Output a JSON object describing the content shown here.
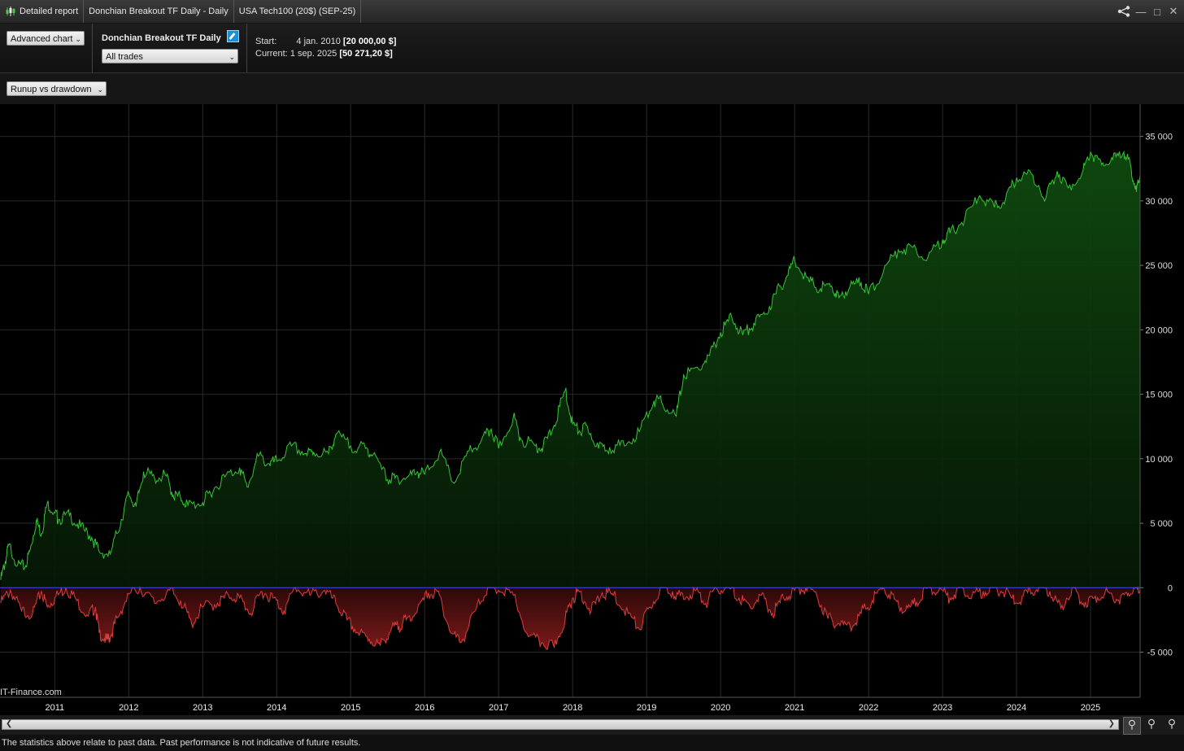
{
  "titlebar": {
    "report_label": "Detailed report",
    "strategy_label": "Donchian Breakout TF Daily - Daily",
    "instrument_label": "USA Tech100 (20$) (SEP-25)"
  },
  "toolbar": {
    "chart_mode": "Advanced chart",
    "strategy_name": "Donchian Breakout TF Daily",
    "trades_filter": "All trades",
    "start_label": "Start:",
    "start_date": "4 jan. 2010",
    "start_value": "[20 000,00 $]",
    "current_label": "Current:",
    "current_date": "1 sep. 2025",
    "current_value": "[50 271,20 $]"
  },
  "view_selector": "Runup vs drawdown",
  "watermark": "IT-Finance.com",
  "footer_text": "The statistics above relate to past data. Past performance is not indicative of future results.",
  "colors": {
    "runup": "#36c436",
    "drawdown": "#e03c3c",
    "zero_line": "#3b4bff",
    "grid": "#2a2a2a"
  },
  "chart_data": {
    "type": "area",
    "x_tick_labels": [
      "2011",
      "2012",
      "2013",
      "2014",
      "2015",
      "2016",
      "2017",
      "2018",
      "2019",
      "2020",
      "2021",
      "2022",
      "2023",
      "2024",
      "2025"
    ],
    "y_tick_labels": [
      "35 000",
      "30 000",
      "25 000",
      "20 000",
      "15 000",
      "10 000",
      "5 000",
      "0",
      "-5 000"
    ],
    "ylim": [
      -8500,
      37500
    ],
    "xlim": [
      2010.26,
      2025.67
    ],
    "grid": true,
    "series": [
      {
        "x": [
          2010.27,
          2010.33,
          2010.38,
          2010.5,
          2010.6,
          2010.67,
          2010.75,
          2010.82,
          2010.9,
          2011.0,
          2011.05,
          2011.2,
          2011.35,
          2011.5,
          2011.6,
          2011.75,
          2011.9,
          2012.0,
          2012.1,
          2012.2,
          2012.35,
          2012.5,
          2012.6,
          2012.7,
          2012.8,
          2013.0,
          2013.1,
          2013.3,
          2013.5,
          2013.6,
          2013.75,
          2013.9,
          2014.0,
          2014.2,
          2014.4,
          2014.5,
          2014.7,
          2014.8,
          2015.0,
          2015.2,
          2015.3,
          2015.5,
          2015.6,
          2015.75,
          2015.9,
          2016.0,
          2016.2,
          2016.4,
          2016.6,
          2016.75,
          2016.9,
          2017.0,
          2017.2,
          2017.3,
          2017.5,
          2017.6,
          2017.75,
          2017.9,
          2018.0,
          2018.1,
          2018.2,
          2018.35,
          2018.5,
          2018.7,
          2018.9,
          2019.1,
          2019.2,
          2019.4,
          2019.5,
          2019.7,
          2019.85,
          2020.0,
          2020.15,
          2020.3,
          2020.45,
          2020.6,
          2020.75,
          2020.9,
          2021.0,
          2021.2,
          2021.35,
          2021.5,
          2021.6,
          2021.75,
          2021.9,
          2022.0,
          2022.2,
          2022.4,
          2022.6,
          2022.8,
          2023.0,
          2023.1,
          2023.3,
          2023.5,
          2023.7,
          2023.85,
          2024.0,
          2024.2,
          2024.4,
          2024.55,
          2024.7,
          2024.9,
          2025.0,
          2025.15,
          2025.3,
          2025.45,
          2025.55,
          2025.62,
          2025.67
        ],
        "values": [
          600,
          2000,
          3300,
          1800,
          1600,
          3000,
          5200,
          4200,
          6600,
          5800,
          5300,
          5600,
          4700,
          3900,
          2800,
          2600,
          5300,
          7300,
          6300,
          9000,
          8500,
          8700,
          7200,
          7000,
          6400,
          6600,
          7400,
          8600,
          9300,
          7800,
          10200,
          9600,
          9800,
          11000,
          10400,
          10500,
          10400,
          11900,
          11000,
          10800,
          10300,
          8400,
          8500,
          8500,
          9000,
          8800,
          10500,
          8100,
          10600,
          11200,
          12300,
          10800,
          13300,
          11500,
          11000,
          10900,
          12600,
          15300,
          12700,
          12100,
          12500,
          10800,
          10900,
          11000,
          12100,
          14500,
          14400,
          13300,
          16500,
          17000,
          18000,
          19800,
          21000,
          19600,
          20500,
          21200,
          22800,
          24200,
          25500,
          23700,
          23200,
          23400,
          22500,
          23400,
          23700,
          22800,
          24500,
          26200,
          26400,
          25600,
          27000,
          27500,
          28600,
          30400,
          29500,
          30100,
          31800,
          32100,
          30300,
          32300,
          31000,
          32400,
          33800,
          32800,
          33200,
          33800,
          32500,
          30700,
          32000
        ],
        "color": "#36c436"
      },
      {
        "x": [
          2010.27,
          2010.4,
          2010.55,
          2010.7,
          2010.82,
          2010.9,
          2011.0,
          2011.15,
          2011.3,
          2011.45,
          2011.55,
          2011.6,
          2011.7,
          2011.75,
          2011.85,
          2012.0,
          2012.15,
          2012.35,
          2012.55,
          2012.7,
          2012.85,
          2013.0,
          2013.2,
          2013.35,
          2013.5,
          2013.65,
          2013.8,
          2013.95,
          2014.1,
          2014.25,
          2014.45,
          2014.65,
          2014.8,
          2014.95,
          2015.1,
          2015.25,
          2015.4,
          2015.55,
          2015.65,
          2015.75,
          2015.9,
          2016.05,
          2016.2,
          2016.35,
          2016.5,
          2016.7,
          2016.85,
          2017.0,
          2017.2,
          2017.4,
          2017.6,
          2017.75,
          2017.9,
          2018.0,
          2018.1,
          2018.25,
          2018.4,
          2018.55,
          2018.75,
          2018.9,
          2019.05,
          2019.2,
          2019.35,
          2019.5,
          2019.65,
          2019.8,
          2019.95,
          2020.1,
          2020.25,
          2020.4,
          2020.55,
          2020.7,
          2020.85,
          2021.0,
          2021.15,
          2021.3,
          2021.45,
          2021.6,
          2021.75,
          2021.9,
          2022.05,
          2022.2,
          2022.35,
          2022.5,
          2022.65,
          2022.8,
          2022.95,
          2023.1,
          2023.25,
          2023.4,
          2023.55,
          2023.7,
          2023.85,
          2024.0,
          2024.15,
          2024.3,
          2024.45,
          2024.6,
          2024.75,
          2024.9,
          2025.05,
          2025.2,
          2025.35,
          2025.5,
          2025.6,
          2025.67
        ],
        "values": [
          -1200,
          -200,
          -1800,
          -2000,
          -300,
          -1500,
          -800,
          0,
          -1000,
          -2200,
          -1500,
          -3500,
          -4100,
          -3800,
          -2300,
          -500,
          0,
          -1200,
          -200,
          -1000,
          -2800,
          -1500,
          -1200,
          -600,
          -800,
          -2000,
          -300,
          -800,
          -1800,
          0,
          -600,
          -200,
          -1200,
          -2500,
          -3500,
          -4000,
          -4500,
          -3200,
          -3000,
          -2500,
          -1800,
          -400,
          -600,
          -3500,
          -4200,
          -1600,
          0,
          -200,
          -600,
          -3800,
          -4300,
          -4600,
          -2400,
          -800,
          -300,
          -1800,
          -400,
          -600,
          -2000,
          -3200,
          -1500,
          0,
          -300,
          -900,
          -200,
          -1200,
          -100,
          0,
          -800,
          -1500,
          -600,
          -2000,
          -800,
          -200,
          0,
          -600,
          -2400,
          -2800,
          -3000,
          -2000,
          -1000,
          0,
          -900,
          -1800,
          -1100,
          0,
          -200,
          -800,
          0,
          -600,
          -300,
          0,
          -400,
          -1200,
          -400,
          0,
          -300,
          -1600,
          0,
          -1200,
          -800,
          -300,
          -900,
          -600,
          0,
          -200
        ],
        "color": "#e03c3c"
      }
    ]
  }
}
